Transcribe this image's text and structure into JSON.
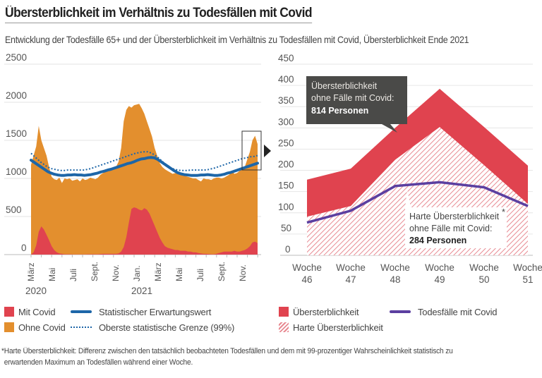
{
  "header": {
    "title": "Übersterblichkeit im Verhältnis zu Todesfällen mit Covid",
    "subtitle": "Entwicklung der Todesfälle 65+ und der Übersterblichkeit im Verhältnis zu Todesfällen mit Covid, Übersterblichkeit Ende 2021"
  },
  "colors": {
    "mit_covid": "#e0434f",
    "ohne_covid": "#e38f2e",
    "erwartung": "#1d66a8",
    "grenze": "#1d66a8",
    "uebersterblichkeit": "#e0434f",
    "covid_line": "#5b3fa0",
    "annotation_dark": "#4a4a48"
  },
  "chart_data": [
    {
      "type": "area",
      "title": "Todesfälle 65+ pro Woche",
      "ylim": [
        0,
        2500
      ],
      "yticks": [
        "0",
        "500",
        "1000",
        "1500",
        "2000",
        "2500"
      ],
      "xtick_labels": [
        "März",
        "Mai",
        "Juli",
        "Sept.",
        "Nov.",
        "Jan.",
        "März",
        "Mai",
        "Juli",
        "Sept.",
        "Nov."
      ],
      "year_labels": [
        "2020",
        "2021"
      ],
      "grid": true,
      "x_unit": "Kalenderwoche ab März 2020",
      "series": [
        {
          "name": "Mit Covid",
          "values": [
            0,
            30,
            120,
            300,
            370,
            330,
            260,
            190,
            110,
            60,
            30,
            15,
            10,
            5,
            5,
            5,
            3,
            3,
            3,
            3,
            3,
            3,
            5,
            5,
            5,
            5,
            5,
            8,
            10,
            10,
            10,
            10,
            10,
            10,
            15,
            40,
            100,
            230,
            420,
            600,
            620,
            610,
            590,
            580,
            610,
            590,
            540,
            460,
            380,
            300,
            220,
            160,
            110,
            90,
            80,
            70,
            60,
            60,
            50,
            50,
            50,
            40,
            40,
            30,
            30,
            20,
            15,
            10,
            10,
            8,
            5,
            5,
            10,
            20,
            30,
            40,
            40,
            40,
            40,
            50,
            40,
            40,
            50,
            60,
            80,
            110,
            160,
            170,
            150
          ]
        },
        {
          "name": "Ohne Covid (Gesamt Todesfälle)",
          "values": [
            1180,
            1300,
            1420,
            1690,
            1500,
            1400,
            1300,
            1150,
            1020,
            990,
            980,
            1010,
            940,
            1000,
            990,
            1000,
            970,
            980,
            990,
            960,
            1000,
            980,
            990,
            1010,
            1000,
            990,
            1010,
            1050,
            1070,
            1090,
            1110,
            1130,
            1130,
            1150,
            1220,
            1400,
            1750,
            1900,
            1950,
            1930,
            1960,
            1970,
            1980,
            1920,
            1850,
            1750,
            1650,
            1550,
            1400,
            1300,
            1200,
            1150,
            1120,
            1100,
            1080,
            1060,
            1070,
            1060,
            1050,
            1040,
            1030,
            1020,
            1010,
            1000,
            1000,
            980,
            960,
            1000,
            990,
            990,
            980,
            1000,
            1010,
            1010,
            1000,
            1010,
            1030,
            1050,
            1100,
            1060,
            1070,
            1100,
            1130,
            1150,
            1250,
            1350,
            1500,
            1560,
            1450
          ]
        },
        {
          "name": "Statistischer Erwartungswert",
          "values": [
            1240,
            1210,
            1180,
            1150,
            1120,
            1090,
            1070,
            1055,
            1045,
            1040,
            1040,
            1045,
            1045,
            1050,
            1045,
            1045,
            1040,
            1045,
            1050,
            1060,
            1070,
            1085,
            1095,
            1110,
            1120,
            1135,
            1150,
            1165,
            1180,
            1195,
            1205,
            1220,
            1240,
            1255,
            1260,
            1270,
            1275,
            1270,
            1250,
            1220,
            1190,
            1160,
            1130,
            1100,
            1075,
            1060,
            1050,
            1045,
            1040,
            1040,
            1040,
            1045,
            1045,
            1050,
            1045,
            1040,
            1040,
            1045,
            1055,
            1070,
            1080,
            1095,
            1110,
            1125,
            1140,
            1155,
            1170,
            1185,
            1200
          ],
          "x_offset_weeks": 0
        },
        {
          "name": "Oberste statistische Grenze (99%)",
          "values": [
            1330,
            1290,
            1250,
            1210,
            1180,
            1150,
            1130,
            1120,
            1110,
            1105,
            1105,
            1110,
            1110,
            1110,
            1110,
            1110,
            1110,
            1120,
            1130,
            1145,
            1160,
            1175,
            1190,
            1205,
            1220,
            1235,
            1250,
            1265,
            1280,
            1295,
            1310,
            1325,
            1335,
            1345,
            1350,
            1350,
            1335,
            1310,
            1280,
            1240,
            1200,
            1170,
            1140,
            1120,
            1110,
            1105,
            1105,
            1105,
            1110,
            1110,
            1110,
            1110,
            1110,
            1115,
            1125,
            1135,
            1150,
            1165,
            1180,
            1195,
            1210,
            1225,
            1240,
            1255,
            1265,
            1275,
            1285,
            1290,
            1300
          ]
        }
      ]
    },
    {
      "type": "area",
      "title": "Übersterblichkeit Ende 2021",
      "categories": [
        [
          "Woche",
          "46"
        ],
        [
          "Woche",
          "47"
        ],
        [
          "Woche",
          "48"
        ],
        [
          "Woche",
          "49"
        ],
        [
          "Woche",
          "50"
        ],
        [
          "Woche",
          "51"
        ]
      ],
      "ylim": [
        0,
        450
      ],
      "yticks": [
        "0",
        "50",
        "100",
        "150",
        "200",
        "250",
        "300",
        "350",
        "400",
        "450"
      ],
      "grid": true,
      "series": [
        {
          "name": "Übersterblichkeit",
          "values": [
            178,
            204,
            300,
            392,
            302,
            211
          ]
        },
        {
          "name": "Harte Übersterblichkeit",
          "values": [
            91,
            116,
            225,
            302,
            212,
            121
          ]
        },
        {
          "name": "Todesfälle mit Covid",
          "values": [
            77,
            105,
            163,
            172,
            160,
            116
          ]
        }
      ],
      "annotations": [
        {
          "line1": "Übersterblichkeit",
          "line2": "ohne Fälle mit Covid:",
          "line3": "814 Personen"
        },
        {
          "line1": "Harte Übersterblichkeit",
          "marker": "*",
          "line2": "ohne Fälle mit Covid:",
          "line3": "284 Personen"
        }
      ]
    }
  ],
  "legend_left": [
    {
      "label": "Mit Covid",
      "kind": "swatch",
      "color": "#e0434f"
    },
    {
      "label": "Statistischer Erwartungswert",
      "kind": "line",
      "color": "#1d66a8"
    },
    {
      "label": "Ohne Covid",
      "kind": "swatch",
      "color": "#e38f2e"
    },
    {
      "label": "Oberste statistische Grenze (99%)",
      "kind": "dotted",
      "color": "#1d66a8"
    }
  ],
  "legend_right": [
    {
      "label": "Übersterblichkeit",
      "kind": "swatch",
      "color": "#e0434f"
    },
    {
      "label": "Todesfälle mit Covid",
      "kind": "line",
      "color": "#5b3fa0"
    },
    {
      "label": "Harte Übersterblichkeit",
      "kind": "hatch",
      "color": "#e0434f"
    }
  ],
  "footnote": {
    "line1": "*Harte Übersterblichkeit: Differenz zwischen den tatsächlich beobachteten Todesfällen und dem mit 99-prozentiger Wahrscheinlichkeit statistisch zu",
    "line2": "erwartenden Maximum an Todesfällen während einer Woche."
  }
}
